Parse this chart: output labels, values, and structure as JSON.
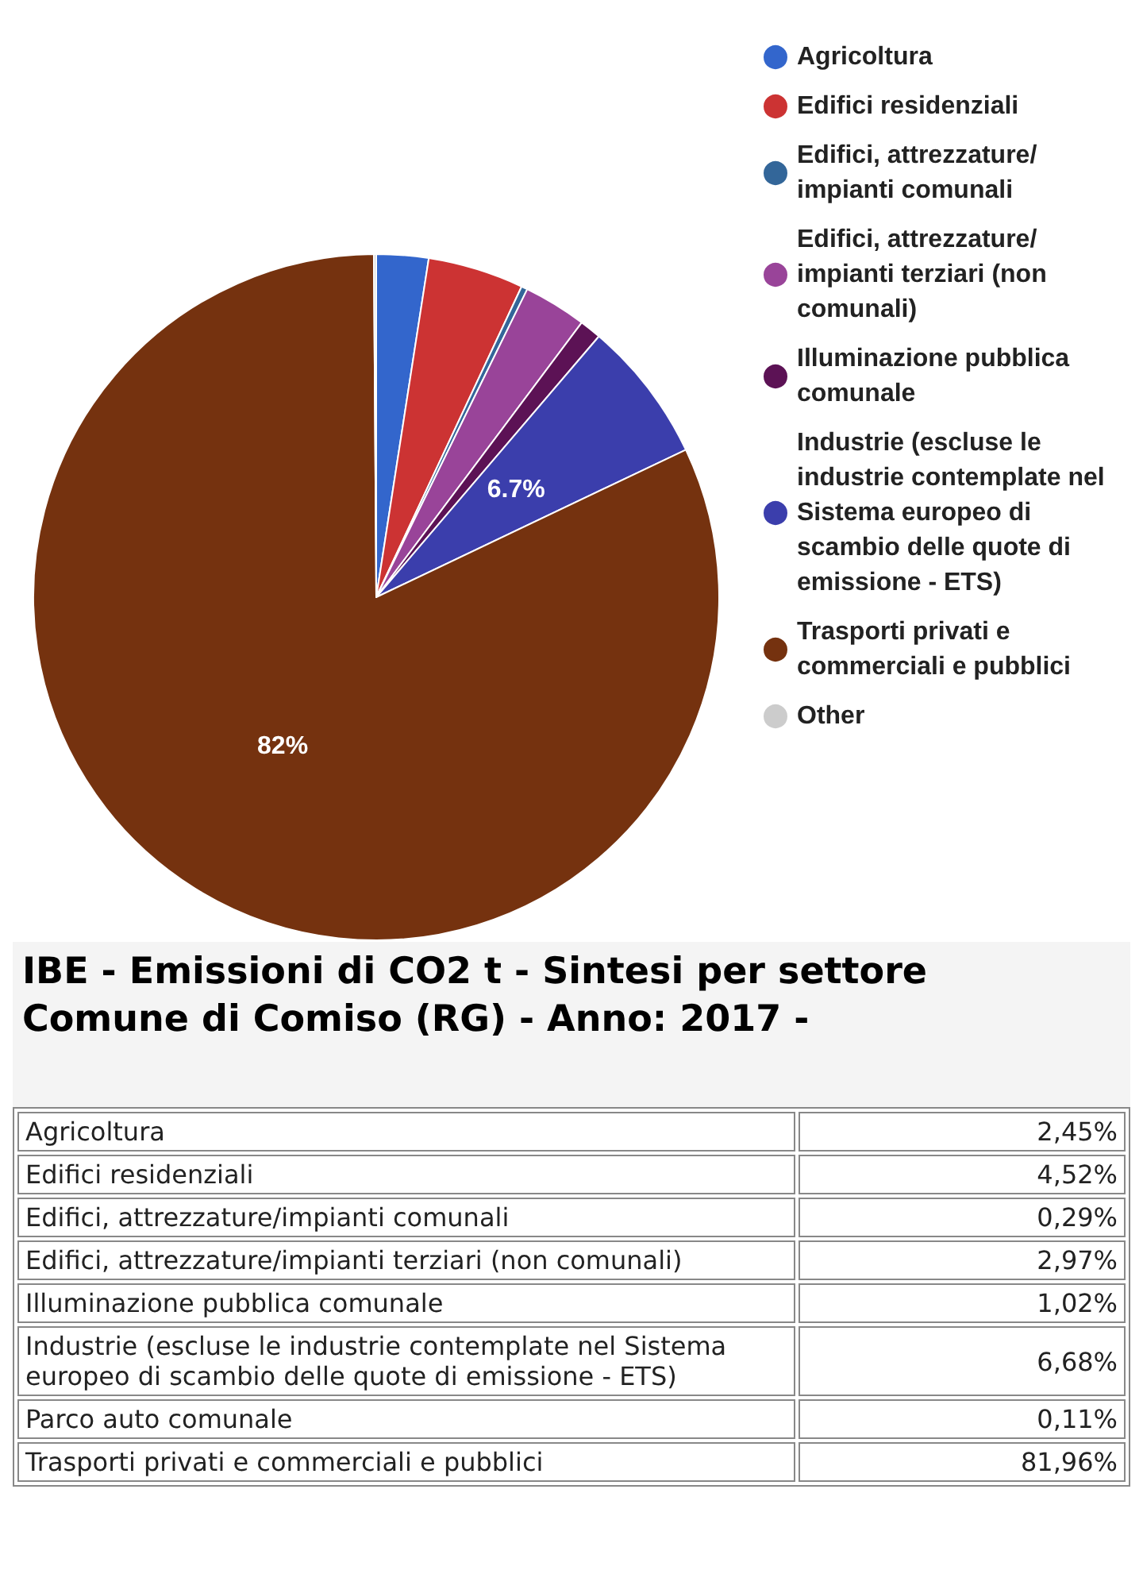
{
  "chart_data": [
    {
      "type": "pie",
      "categories": [
        "Agricoltura",
        "Edifici residenziali",
        "Edifici, attrezzature/ impianti comunali",
        "Edifici, attrezzature/ impianti terziari (non comunali)",
        "Illuminazione pubblica comunale",
        "Industrie (escluse le industrie contemplate nel Sistema europeo di scambio delle quote di emissione - ETS)",
        "Trasporti privati e commerciali e pubblici",
        "Other"
      ],
      "values": [
        2.45,
        4.52,
        0.29,
        2.97,
        1.02,
        6.68,
        81.96,
        0.11
      ],
      "colors": [
        "#3366cc",
        "#cc3333",
        "#336699",
        "#994499",
        "#5c1255",
        "#3b3eac",
        "#75320f",
        "#cccccc"
      ],
      "value_labels": [
        null,
        null,
        null,
        null,
        null,
        "6.7%",
        "82%",
        null
      ],
      "legend": "right"
    },
    {
      "type": "other",
      "title": "IBE - Emissioni di CO2 t - Sintesi per settore",
      "subtitle": "Comune di Comiso (RG) - Anno: 2017 -",
      "categories": [
        "Agricoltura",
        "Edifici residenziali",
        "Edifici, attrezzature/impianti comunali",
        "Edifici, attrezzature/impianti terziari (non comunali)",
        "Illuminazione pubblica comunale",
        "Industrie (escluse le industrie contemplate nel Sistema europeo di scambio delle quote di emissione - ETS)",
        "Parco auto comunale",
        "Trasporti privati e commerciali e pubblici"
      ],
      "value_labels": [
        "2,45%",
        "4,52%",
        "0,29%",
        "2,97%",
        "1,02%",
        "6,68%",
        "0,11%",
        "81,96%"
      ]
    }
  ]
}
